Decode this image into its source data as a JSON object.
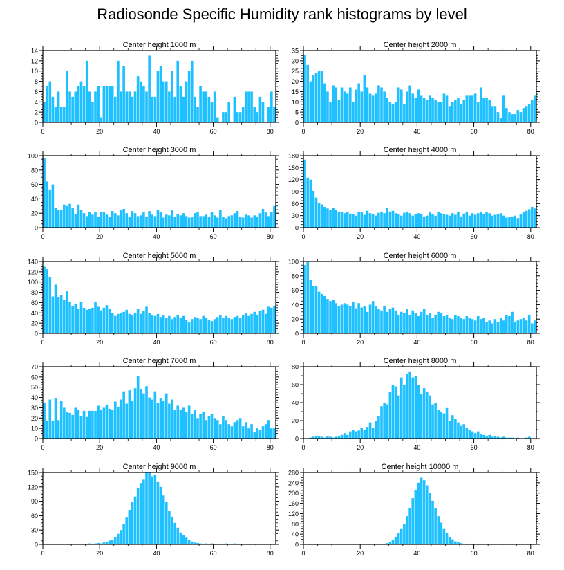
{
  "title": "Radiosonde Specific Humidity rank histograms by level",
  "colors": {
    "bar": "#1ec0ff",
    "axis": "#000000",
    "background": "#ffffff"
  },
  "chart_data": [
    {
      "type": "bar",
      "title": "Center height 1000 m",
      "ylim": [
        0,
        14
      ],
      "yticks": [
        0,
        2,
        4,
        6,
        8,
        10,
        12,
        14
      ],
      "xlim": [
        0,
        82
      ],
      "xticks": [
        0,
        20,
        40,
        60,
        80
      ],
      "values": [
        4,
        7,
        8,
        5,
        3,
        6,
        3,
        3,
        10,
        6,
        5,
        6,
        7,
        8,
        7,
        12,
        6,
        4,
        6,
        7,
        1,
        7,
        7,
        7,
        7,
        5,
        12,
        6,
        11,
        6,
        6,
        5,
        6,
        9,
        8,
        7,
        6,
        13,
        5,
        5,
        10,
        11,
        8,
        8,
        6,
        10,
        5,
        12,
        7,
        5,
        8,
        10,
        12,
        5,
        3,
        7,
        6,
        6,
        5,
        4,
        6,
        1,
        0,
        2,
        2,
        4,
        0,
        5,
        2,
        2,
        3,
        6,
        6,
        6,
        3,
        2,
        5,
        4,
        0,
        3,
        6,
        3
      ]
    },
    {
      "type": "bar",
      "title": "Center height 2000 m",
      "ylim": [
        0,
        35
      ],
      "yticks": [
        0,
        5,
        10,
        15,
        20,
        25,
        30,
        35
      ],
      "xlim": [
        0,
        82
      ],
      "xticks": [
        0,
        20,
        40,
        60,
        80
      ],
      "values": [
        33,
        28,
        20,
        23,
        24,
        25,
        25,
        19,
        15,
        10,
        18,
        17,
        11,
        17,
        15,
        14,
        17,
        10,
        16,
        19,
        15,
        23,
        17,
        14,
        13,
        14,
        18,
        17,
        15,
        12,
        10,
        9,
        10,
        17,
        16,
        9,
        15,
        18,
        14,
        12,
        16,
        13,
        12,
        11,
        13,
        12,
        11,
        10,
        10,
        14,
        13,
        8,
        10,
        11,
        12,
        9,
        11,
        13,
        13,
        13,
        14,
        10,
        17,
        12,
        12,
        11,
        8,
        8,
        5,
        2,
        13,
        7,
        5,
        4,
        4,
        6,
        5,
        7,
        8,
        9,
        11,
        13
      ]
    },
    {
      "type": "bar",
      "title": "Center height 3000 m",
      "ylim": [
        0,
        100
      ],
      "yticks": [
        0,
        20,
        40,
        60,
        80,
        100
      ],
      "xlim": [
        0,
        82
      ],
      "xticks": [
        0,
        20,
        40,
        60,
        80
      ],
      "values": [
        97,
        64,
        53,
        60,
        27,
        24,
        25,
        32,
        30,
        33,
        27,
        19,
        32,
        25,
        20,
        16,
        22,
        18,
        22,
        15,
        22,
        22,
        18,
        15,
        23,
        20,
        17,
        24,
        26,
        20,
        15,
        23,
        20,
        16,
        17,
        21,
        15,
        23,
        18,
        16,
        25,
        22,
        14,
        18,
        17,
        24,
        15,
        19,
        17,
        20,
        16,
        14,
        15,
        20,
        22,
        16,
        16,
        18,
        15,
        22,
        17,
        14,
        25,
        15,
        13,
        16,
        17,
        20,
        23,
        15,
        14,
        18,
        17,
        14,
        17,
        15,
        20,
        26,
        21,
        16,
        22,
        30
      ]
    },
    {
      "type": "bar",
      "title": "Center height 4000 m",
      "ylim": [
        0,
        180
      ],
      "yticks": [
        0,
        30,
        60,
        90,
        120,
        150,
        180
      ],
      "xlim": [
        0,
        82
      ],
      "xticks": [
        0,
        20,
        40,
        60,
        80
      ],
      "values": [
        170,
        125,
        120,
        92,
        75,
        62,
        58,
        52,
        48,
        45,
        50,
        45,
        40,
        38,
        36,
        40,
        35,
        34,
        30,
        40,
        38,
        32,
        42,
        36,
        34,
        30,
        37,
        40,
        36,
        50,
        40,
        42,
        36,
        34,
        30,
        37,
        40,
        36,
        30,
        33,
        36,
        34,
        28,
        30,
        38,
        34,
        30,
        40,
        36,
        34,
        32,
        30,
        36,
        32,
        38,
        28,
        35,
        38,
        30,
        36,
        32,
        36,
        40,
        34,
        38,
        36,
        30,
        32,
        34,
        36,
        30,
        25,
        26,
        28,
        30,
        24,
        34,
        38,
        42,
        46,
        52,
        48
      ]
    },
    {
      "type": "bar",
      "title": "Center height 5000 m",
      "ylim": [
        0,
        140
      ],
      "yticks": [
        0,
        20,
        40,
        60,
        80,
        100,
        120,
        140
      ],
      "xlim": [
        0,
        82
      ],
      "xticks": [
        0,
        20,
        40,
        60,
        80
      ],
      "values": [
        130,
        125,
        110,
        72,
        95,
        70,
        75,
        65,
        82,
        62,
        54,
        58,
        48,
        62,
        50,
        46,
        48,
        50,
        62,
        52,
        45,
        50,
        55,
        48,
        40,
        34,
        38,
        40,
        42,
        46,
        38,
        36,
        40,
        48,
        38,
        44,
        52,
        40,
        36,
        34,
        38,
        32,
        36,
        30,
        34,
        28,
        32,
        36,
        30,
        34,
        26,
        22,
        28,
        32,
        30,
        28,
        34,
        30,
        26,
        24,
        28,
        32,
        36,
        30,
        34,
        30,
        28,
        32,
        34,
        30,
        36,
        40,
        34,
        38,
        42,
        36,
        44,
        46,
        38,
        52,
        50,
        54
      ]
    },
    {
      "type": "bar",
      "title": "Center height 6000 m",
      "ylim": [
        0,
        100
      ],
      "yticks": [
        0,
        20,
        40,
        60,
        80,
        100
      ],
      "xlim": [
        0,
        82
      ],
      "xticks": [
        0,
        20,
        40,
        60,
        80
      ],
      "values": [
        95,
        99,
        74,
        66,
        66,
        58,
        55,
        52,
        48,
        45,
        47,
        42,
        38,
        40,
        42,
        40,
        38,
        44,
        35,
        42,
        36,
        38,
        30,
        40,
        45,
        38,
        34,
        32,
        38,
        30,
        34,
        36,
        32,
        26,
        30,
        28,
        34,
        26,
        32,
        28,
        24,
        30,
        34,
        26,
        28,
        22,
        26,
        30,
        28,
        24,
        26,
        22,
        20,
        26,
        24,
        22,
        20,
        24,
        22,
        20,
        18,
        24,
        20,
        22,
        16,
        18,
        14,
        20,
        16,
        22,
        18,
        26,
        24,
        30,
        16,
        18,
        20,
        22,
        18,
        26,
        14,
        18
      ]
    },
    {
      "type": "bar",
      "title": "Center height 7000 m",
      "ylim": [
        0,
        70
      ],
      "yticks": [
        0,
        10,
        20,
        30,
        40,
        50,
        60,
        70
      ],
      "xlim": [
        0,
        82
      ],
      "xticks": [
        0,
        20,
        40,
        60,
        80
      ],
      "values": [
        35,
        17,
        38,
        17,
        39,
        18,
        37,
        30,
        26,
        25,
        23,
        30,
        28,
        22,
        27,
        21,
        27,
        27,
        27,
        32,
        28,
        30,
        33,
        29,
        28,
        36,
        31,
        38,
        46,
        34,
        47,
        37,
        49,
        61,
        48,
        44,
        51,
        40,
        38,
        46,
        35,
        39,
        37,
        44,
        34,
        38,
        28,
        32,
        28,
        30,
        26,
        32,
        24,
        28,
        20,
        24,
        26,
        18,
        22,
        24,
        20,
        18,
        14,
        22,
        18,
        14,
        12,
        16,
        18,
        20,
        12,
        16,
        10,
        14,
        6,
        10,
        8,
        12,
        14,
        18,
        10,
        10
      ]
    },
    {
      "type": "bar",
      "title": "Center height 8000 m",
      "ylim": [
        0,
        80
      ],
      "yticks": [
        0,
        20,
        40,
        60,
        80
      ],
      "xlim": [
        0,
        82
      ],
      "xticks": [
        0,
        20,
        40,
        60,
        80
      ],
      "values": [
        0,
        0,
        1,
        2,
        3,
        3,
        2,
        1,
        3,
        2,
        1,
        2,
        3,
        4,
        6,
        4,
        8,
        10,
        8,
        9,
        12,
        10,
        13,
        18,
        12,
        20,
        25,
        36,
        40,
        38,
        52,
        60,
        58,
        48,
        68,
        60,
        72,
        74,
        68,
        70,
        60,
        50,
        56,
        52,
        48,
        38,
        40,
        32,
        30,
        28,
        34,
        20,
        26,
        22,
        18,
        14,
        16,
        12,
        10,
        8,
        6,
        8,
        5,
        4,
        3,
        4,
        2,
        3,
        2,
        1,
        2,
        1,
        1,
        1,
        0,
        1,
        0,
        0,
        1,
        2,
        0,
        0
      ]
    },
    {
      "type": "bar",
      "title": "Center height 9000 m",
      "ylim": [
        0,
        150
      ],
      "yticks": [
        0,
        30,
        60,
        90,
        120,
        150
      ],
      "xlim": [
        0,
        82
      ],
      "xticks": [
        0,
        20,
        40,
        60,
        80
      ],
      "values": [
        0,
        0,
        0,
        0,
        0,
        0,
        0,
        0,
        0,
        0,
        0,
        0,
        0,
        0,
        0,
        0,
        2,
        1,
        2,
        3,
        2,
        4,
        5,
        8,
        10,
        15,
        22,
        30,
        42,
        56,
        72,
        88,
        100,
        118,
        128,
        135,
        150,
        150,
        142,
        145,
        130,
        120,
        102,
        88,
        70,
        58,
        45,
        35,
        25,
        20,
        14,
        10,
        6,
        4,
        3,
        2,
        1,
        2,
        1,
        2,
        1,
        0,
        1,
        1,
        2,
        1,
        1,
        2,
        1,
        0,
        1,
        0,
        0,
        0,
        0,
        0,
        0,
        0,
        0,
        0,
        0,
        0
      ]
    },
    {
      "type": "bar",
      "title": "Center height 10000 m",
      "ylim": [
        0,
        280
      ],
      "yticks": [
        0,
        40,
        80,
        120,
        160,
        200,
        240,
        280
      ],
      "xlim": [
        0,
        82
      ],
      "xticks": [
        0,
        20,
        40,
        60,
        80
      ],
      "values": [
        0,
        0,
        0,
        0,
        0,
        0,
        0,
        0,
        0,
        0,
        0,
        0,
        0,
        0,
        0,
        0,
        0,
        0,
        0,
        0,
        0,
        0,
        0,
        0,
        0,
        0,
        0,
        1,
        2,
        5,
        10,
        18,
        30,
        45,
        60,
        80,
        110,
        140,
        180,
        210,
        240,
        260,
        250,
        230,
        200,
        170,
        140,
        110,
        85,
        60,
        45,
        30,
        20,
        12,
        8,
        5,
        3,
        2,
        2,
        1,
        1,
        0,
        1,
        0,
        0,
        0,
        0,
        0,
        0,
        0,
        0,
        0,
        0,
        0,
        0,
        0,
        0,
        0,
        0,
        0,
        0,
        0
      ]
    }
  ]
}
